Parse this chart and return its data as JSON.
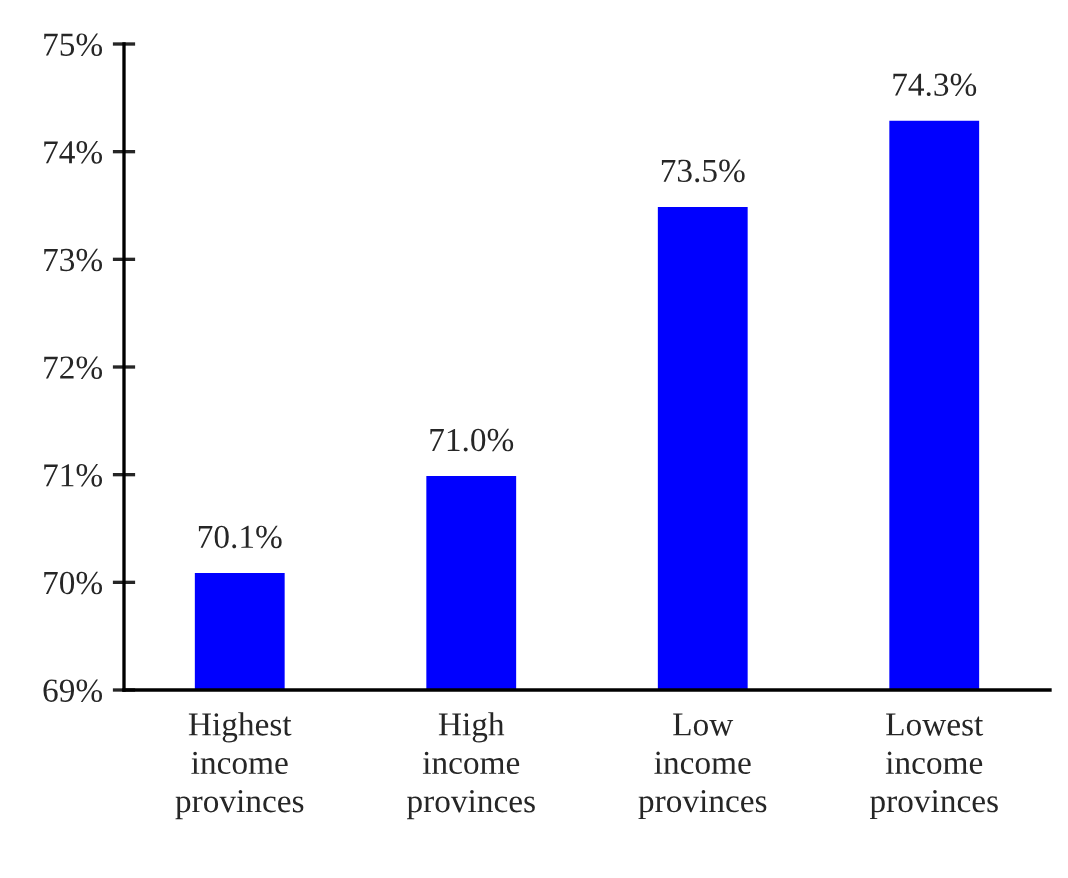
{
  "chart_data": {
    "type": "bar",
    "categories": [
      "Highest\nincome\nprovinces",
      "High\nincome\nprovinces",
      "Low\nincome\nprovinces",
      "Lowest\nincome\nprovinces"
    ],
    "values": [
      70.1,
      71.0,
      73.5,
      74.3
    ],
    "value_labels": [
      "70.1%",
      "71.0%",
      "73.5%",
      "74.3%"
    ],
    "color": "#0000ff",
    "ylim": [
      69,
      75
    ],
    "yticks": [
      {
        "value": 69,
        "label": "69%"
      },
      {
        "value": 70,
        "label": "70%"
      },
      {
        "value": 71,
        "label": "71%"
      },
      {
        "value": 72,
        "label": "72%"
      },
      {
        "value": 73,
        "label": "73%"
      },
      {
        "value": 74,
        "label": "74%"
      },
      {
        "value": 75,
        "label": "75%"
      }
    ],
    "grid": false,
    "legend": false
  }
}
